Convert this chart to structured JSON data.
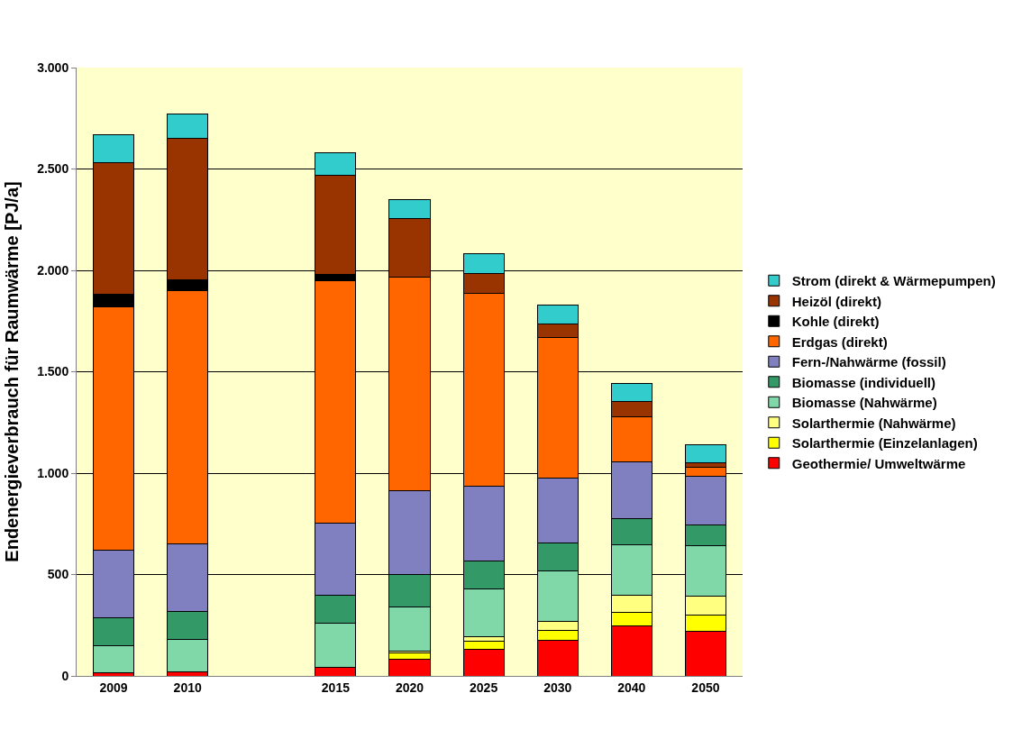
{
  "chart_data": {
    "type": "bar",
    "stacked": true,
    "ylabel": "Endenergieverbrauch für Raumwärme [PJ/a]",
    "categories": [
      "2009",
      "2010",
      null,
      "2015",
      "2020",
      "2025",
      "2030",
      "2040",
      "2050"
    ],
    "ylim": [
      0,
      3000
    ],
    "yticks": [
      0,
      {
        "value": 500,
        "label": "500"
      },
      {
        "value": 1000,
        "label": "1.000"
      },
      {
        "value": 1500,
        "label": "1.500"
      },
      {
        "value": 2000,
        "label": "2.000"
      },
      {
        "value": 2500,
        "label": "2.500"
      },
      {
        "value": 3000,
        "label": "3.000"
      }
    ],
    "grid": "y",
    "legend": "right",
    "series": [
      {
        "name": "Geothermie/ Umweltwärme",
        "color": "#ff0000",
        "values": [
          15,
          19,
          null,
          44,
          83,
          129,
          176,
          246,
          218
        ]
      },
      {
        "name": "Solarthermie (Einzelanlagen)",
        "color": "#ffff00",
        "values": [
          0,
          0,
          null,
          0,
          30,
          41,
          49,
          68,
          80
        ]
      },
      {
        "name": "Solarthermie (Nahwärme)",
        "color": "#ffff80",
        "values": [
          0,
          0,
          null,
          0,
          8,
          25,
          45,
          83,
          97
        ]
      },
      {
        "name": "Biomasse (Nahwärme)",
        "color": "#80d8a8",
        "values": [
          133,
          159,
          null,
          215,
          217,
          235,
          250,
          250,
          248
        ]
      },
      {
        "name": "Biomasse (individuell)",
        "color": "#339966",
        "values": [
          138,
          138,
          null,
          141,
          160,
          137,
          135,
          128,
          100
        ]
      },
      {
        "name": "Fern-/Nahwärme (fossil)",
        "color": "#8080c0",
        "values": [
          336,
          334,
          null,
          353,
          416,
          369,
          321,
          281,
          243
        ]
      },
      {
        "name": "Erdgas (direkt)",
        "color": "#ff6600",
        "values": [
          1200,
          1249,
          null,
          1197,
          1051,
          952,
          693,
          224,
          45
        ]
      },
      {
        "name": "Kohle (direkt)",
        "color": "#000000",
        "values": [
          62,
          53,
          null,
          31,
          0,
          0,
          0,
          0,
          0
        ]
      },
      {
        "name": "Heizöl (direkt)",
        "color": "#993300",
        "values": [
          649,
          697,
          null,
          488,
          289,
          96,
          66,
          72,
          20
        ]
      },
      {
        "name": "Strom (direkt & Wärmepumpen)",
        "color": "#33cccc",
        "values": [
          134,
          124,
          null,
          112,
          97,
          97,
          94,
          91,
          91
        ]
      }
    ]
  }
}
